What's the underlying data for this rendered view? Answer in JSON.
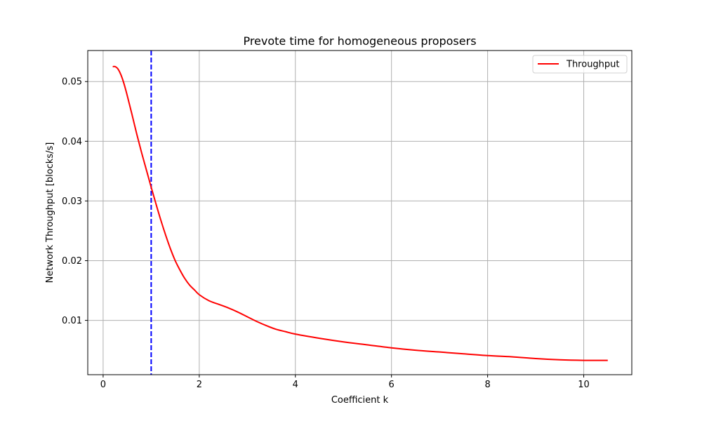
{
  "chart_data": {
    "type": "line",
    "title": "Prevote time for homogeneous proposers",
    "xlabel": "Coefficient k",
    "ylabel": "Network Throughput [blocks/s]",
    "xlim": [
      -0.32,
      11.0
    ],
    "ylim": [
      0.0009,
      0.0552
    ],
    "xticks": [
      0,
      2,
      4,
      6,
      8,
      10
    ],
    "xtick_labels": [
      "0",
      "2",
      "4",
      "6",
      "8",
      "10"
    ],
    "yticks": [
      0.01,
      0.02,
      0.03,
      0.04,
      0.05
    ],
    "ytick_labels": [
      "0.01",
      "0.02",
      "0.03",
      "0.04",
      "0.05"
    ],
    "grid": true,
    "legend_position": "top-right",
    "series": [
      {
        "name": "Throughput",
        "color": "#ff0000",
        "x": [
          0.2,
          0.25,
          0.3,
          0.35,
          0.4,
          0.45,
          0.5,
          0.6,
          0.7,
          0.8,
          0.9,
          1.0,
          1.1,
          1.2,
          1.3,
          1.4,
          1.5,
          1.6,
          1.7,
          1.8,
          1.9,
          2.0,
          2.2,
          2.4,
          2.6,
          2.8,
          3.0,
          3.2,
          3.4,
          3.6,
          3.8,
          4.0,
          4.5,
          5.0,
          5.5,
          6.0,
          6.5,
          7.0,
          7.5,
          8.0,
          8.5,
          9.0,
          9.5,
          10.0,
          10.25,
          10.5
        ],
        "y": [
          0.0525,
          0.0525,
          0.0522,
          0.0515,
          0.0505,
          0.0492,
          0.0477,
          0.0445,
          0.0412,
          0.0381,
          0.0352,
          0.0323,
          0.0295,
          0.0268,
          0.0243,
          0.022,
          0.02,
          0.0184,
          0.017,
          0.0159,
          0.0151,
          0.0143,
          0.0133,
          0.0127,
          0.0121,
          0.0114,
          0.0106,
          0.0098,
          0.0091,
          0.0085,
          0.0081,
          0.0077,
          0.007,
          0.0064,
          0.0059,
          0.0054,
          0.005,
          0.0047,
          0.0044,
          0.0041,
          0.0039,
          0.0036,
          0.0034,
          0.0033,
          0.0033,
          0.0033
        ]
      }
    ],
    "reference_lines": [
      {
        "orientation": "vertical",
        "x": 1.0,
        "color": "#0000ff",
        "style": "dashed"
      }
    ],
    "colors": {
      "grid": "#b0b0b0",
      "axis": "#000000",
      "legend_border": "#d0d0d0"
    }
  }
}
